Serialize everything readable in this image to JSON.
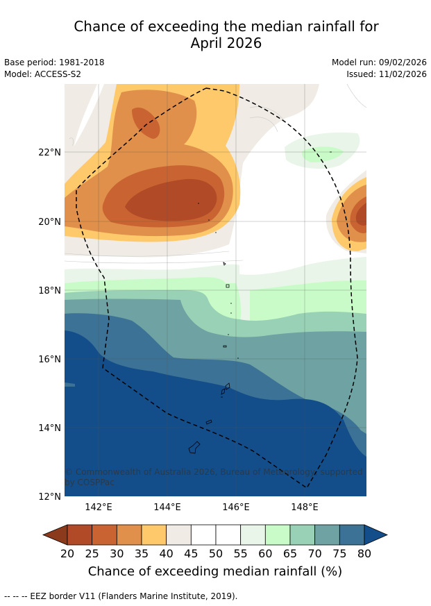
{
  "title_line1": "Chance of exceeding the median rainfall for",
  "title_line2": "April 2026",
  "base_period": "Base period: 1981-2018",
  "model": "Model: ACCESS-S2",
  "model_run": "Model run: 09/02/2026",
  "issued": "Issued: 11/02/2026",
  "lon_labels": [
    "142°E",
    "144°E",
    "146°E",
    "148°E"
  ],
  "lat_labels": [
    "22°N",
    "20°N",
    "18°N",
    "16°N",
    "14°N",
    "12°N"
  ],
  "copyright_line1": "© Commonwealth of Australia 2026, Bureau of Meteorology, supported",
  "copyright_line2": "by COSPPac",
  "colorbar": {
    "ticks": [
      "20",
      "25",
      "30",
      "35",
      "40",
      "45",
      "50",
      "55",
      "60",
      "65",
      "70",
      "75",
      "80"
    ],
    "colors": [
      "#8c3a1c",
      "#b14a27",
      "#c96432",
      "#e0904a",
      "#fec96a",
      "#f0ece5",
      "#ffffff",
      "#ffffff",
      "#e9f5e9",
      "#c9fbc8",
      "#98d1b6",
      "#6ea2a3",
      "#3c7296",
      "#134e8a"
    ],
    "label": "Chance of exceeding median rainfall (%)"
  },
  "footer": "--  --  -- EEZ border V11 (Flanders Marine Institute, 2019)."
}
